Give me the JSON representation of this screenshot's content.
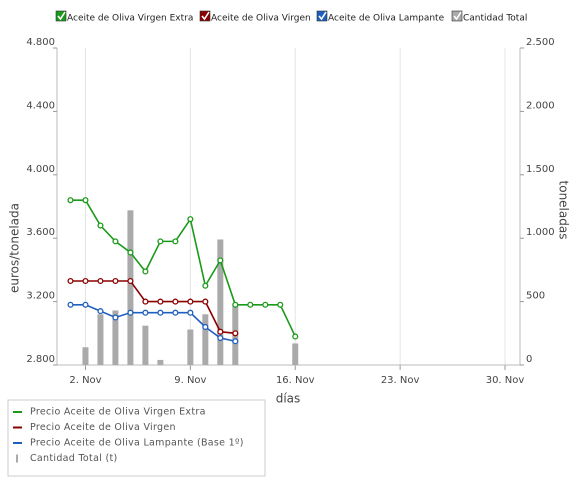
{
  "chart_data": {
    "type": "line",
    "toggles": [
      "Aceite de Oliva Virgen Extra",
      "Aceite de Oliva Virgen",
      "Aceite de Oliva Lampante",
      "Cantidad Total"
    ],
    "y_label": "euros/tonelada",
    "y2_label": "toneladas",
    "x_label": "días",
    "x": [
      1,
      2,
      3,
      4,
      5,
      6,
      7,
      8,
      9,
      10,
      11,
      12,
      13,
      14,
      15,
      16
    ],
    "xlim": [
      0.1,
      31
    ],
    "xticks": [
      {
        "value": 2,
        "label": "2. Nov"
      },
      {
        "value": 9,
        "label": "9. Nov"
      },
      {
        "value": 16,
        "label": "16. Nov"
      },
      {
        "value": 23,
        "label": "23. Nov"
      },
      {
        "value": 30,
        "label": "30. Nov"
      }
    ],
    "ylim": [
      2800,
      4800
    ],
    "yticks": [
      {
        "value": 2800,
        "label": "2.800"
      },
      {
        "value": 3200,
        "label": "3.200"
      },
      {
        "value": 3600,
        "label": "3.600"
      },
      {
        "value": 4000,
        "label": "4.000"
      },
      {
        "value": 4400,
        "label": "4.400"
      },
      {
        "value": 4800,
        "label": "4.800"
      }
    ],
    "y2lim": [
      0,
      2500
    ],
    "y2ticks": [
      0,
      500,
      {
        "value": 1000,
        "label": "1.000"
      },
      {
        "value": 1500,
        "label": "1.500"
      },
      {
        "value": 2000,
        "label": "2.000"
      },
      {
        "value": 2500,
        "label": "2.500"
      }
    ],
    "grid": "x",
    "series": [
      {
        "name": "Precio Aceite de Oliva Virgen Extra",
        "color": "#1a9a1a",
        "values": [
          3840,
          3840,
          3680,
          3580,
          3510,
          3390,
          3580,
          3580,
          3720,
          3300,
          3460,
          3180,
          3180,
          3180,
          3180,
          2980
        ]
      },
      {
        "name": "Precio Aceite de Oliva Virgen",
        "color": "#8b0000",
        "values": [
          3330,
          3330,
          3330,
          3330,
          3330,
          3200,
          3200,
          3200,
          3200,
          3200,
          3010,
          3000,
          null,
          null,
          null,
          null
        ]
      },
      {
        "name": "Precio Aceite de Oliva Lampante (Base 1º)",
        "color": "#1f5fbf",
        "values": [
          3180,
          3180,
          3140,
          3100,
          3130,
          3130,
          3130,
          3130,
          3130,
          3040,
          2970,
          2950,
          null,
          null,
          null,
          null
        ]
      },
      {
        "name": "Cantidad Total (t)",
        "color": "#aaaaaa",
        "axis": "y2",
        "type": "bar",
        "values": [
          null,
          140,
          400,
          430,
          1220,
          310,
          40,
          null,
          280,
          400,
          990,
          470,
          null,
          null,
          null,
          170
        ]
      }
    ]
  }
}
